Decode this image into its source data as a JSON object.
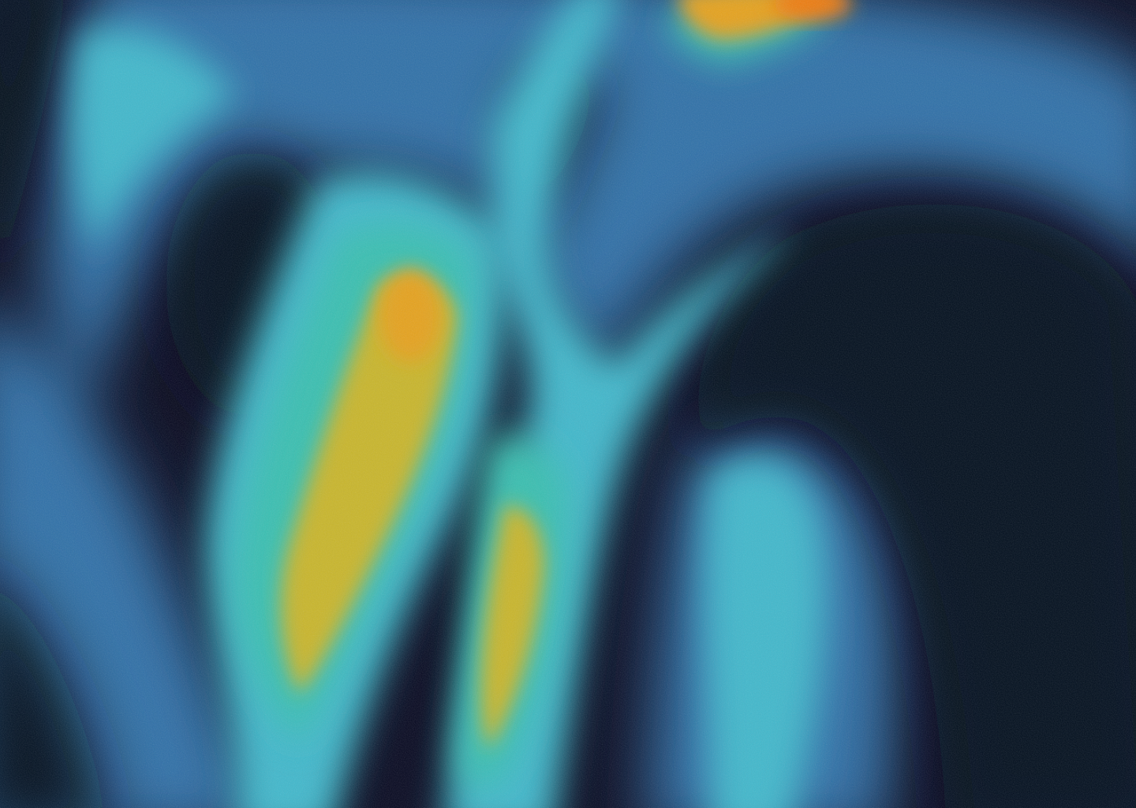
{
  "image": {
    "subject": "abstract-fluid-gradient",
    "palette": {
      "deep": "#05071f",
      "navy": "#0e2a5c",
      "steel": "#2f6fa8",
      "cyan": "#3fb8cc",
      "teal": "#39c0b0",
      "green": "#7dbf5a",
      "yellow": "#c9b62a",
      "amber": "#e6a21e",
      "orange": "#f07a10"
    }
  }
}
